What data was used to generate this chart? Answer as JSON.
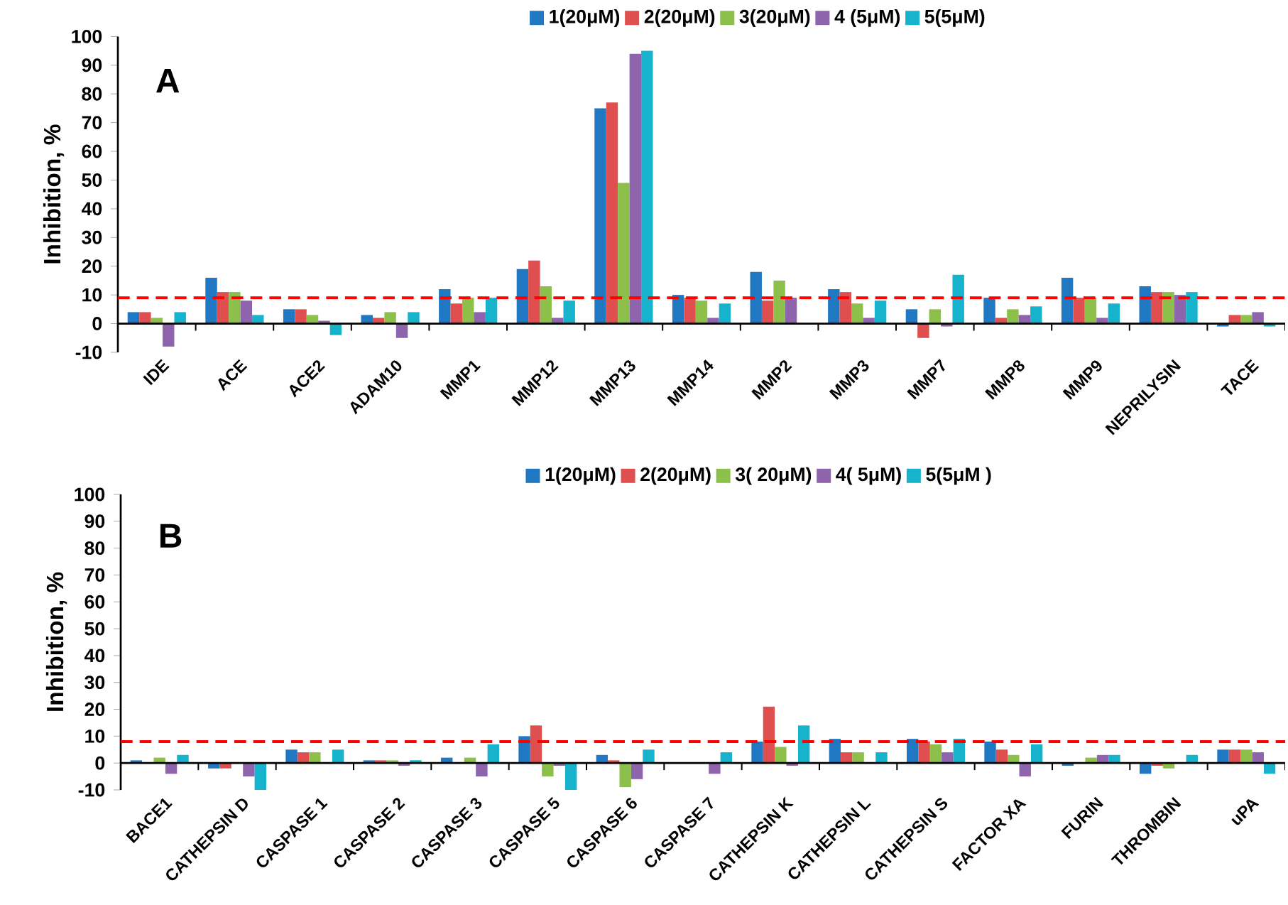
{
  "chart_data": [
    {
      "type": "bar",
      "ylabel": "Inhibition, %",
      "annotations": [
        "A"
      ],
      "categories": [
        "IDE",
        "ACE",
        "ACE2",
        "ADAM10",
        "MMP1",
        "MMP12",
        "MMP13",
        "MMP14",
        "MMP2",
        "MMP3",
        "MMP7",
        "MMP8",
        "MMP9",
        "NEPRILYSIN",
        "TACE"
      ],
      "series": [
        {
          "name": "1(20μM)",
          "color": "#1f78c1",
          "values": [
            4,
            16,
            5,
            3,
            12,
            19,
            75,
            10,
            18,
            12,
            5,
            9,
            16,
            13,
            -1
          ]
        },
        {
          "name": "2(20μM)",
          "color": "#e04f4f",
          "values": [
            4,
            11,
            5,
            2,
            7,
            22,
            77,
            9,
            8,
            11,
            -5,
            2,
            9,
            11,
            3
          ]
        },
        {
          "name": "3(20μM)",
          "color": "#8cc04a",
          "values": [
            2,
            11,
            3,
            4,
            9,
            13,
            49,
            8,
            15,
            7,
            5,
            5,
            9,
            11,
            3
          ]
        },
        {
          "name": "4 (5μM)",
          "color": "#8e65ad",
          "values": [
            -8,
            8,
            1,
            -5,
            4,
            2,
            94,
            2,
            9,
            2,
            -1,
            3,
            2,
            10,
            4
          ]
        },
        {
          "name": "5(5μM)",
          "color": "#17b3cc",
          "values": [
            4,
            3,
            -4,
            4,
            9,
            8,
            95,
            7,
            0,
            8,
            17,
            6,
            7,
            11,
            -1
          ]
        }
      ],
      "ylim": [
        -10,
        100
      ],
      "yticks": [
        -10,
        0,
        10,
        20,
        30,
        40,
        50,
        60,
        70,
        80,
        90,
        100
      ],
      "legend": "top",
      "ref_lines": [
        {
          "axis": "y",
          "value": 9,
          "color": "#ff0000",
          "line_style": "dashed"
        }
      ]
    },
    {
      "type": "bar",
      "ylabel": "Inhibition, %",
      "annotations": [
        "B"
      ],
      "categories": [
        "BACE1",
        "CATHEPSIN D",
        "CASPASE 1",
        "CASPASE 2",
        "CASPASE 3",
        "CASPASE 5",
        "CASPASE 6",
        "CASPASE 7",
        "CATHEPSIN K",
        "CATHEPSIN L",
        "CATHEPSIN S",
        "FACTOR XA",
        "FURIN",
        "THROMBIN",
        "uPA"
      ],
      "series": [
        {
          "name": "1(20μM)",
          "color": "#1f78c1",
          "values": [
            1,
            -2,
            5,
            1,
            2,
            10,
            3,
            0,
            8,
            9,
            9,
            8,
            -1,
            -4,
            5
          ]
        },
        {
          "name": "2(20μM)",
          "color": "#e04f4f",
          "values": [
            0,
            -2,
            4,
            1,
            0,
            14,
            1,
            0,
            21,
            4,
            8,
            5,
            0,
            -1,
            5
          ]
        },
        {
          "name": "3( 20μM)",
          "color": "#8cc04a",
          "values": [
            2,
            0,
            4,
            1,
            2,
            -5,
            -9,
            0,
            6,
            4,
            7,
            3,
            2,
            -2,
            5
          ]
        },
        {
          "name": "4( 5μM)",
          "color": "#8e65ad",
          "values": [
            -4,
            -5,
            0,
            -1,
            -5,
            -1,
            -6,
            -4,
            -1,
            0,
            4,
            -5,
            3,
            0,
            4
          ]
        },
        {
          "name": "5(5μM )",
          "color": "#17b3cc",
          "values": [
            3,
            -10,
            5,
            1,
            7,
            -10,
            5,
            4,
            14,
            4,
            9,
            7,
            3,
            3,
            -4
          ]
        }
      ],
      "ylim": [
        -10,
        100
      ],
      "yticks": [
        -10,
        0,
        10,
        20,
        30,
        40,
        50,
        60,
        70,
        80,
        90,
        100
      ],
      "legend": "top",
      "ref_lines": [
        {
          "axis": "y",
          "value": 8,
          "color": "#ff0000",
          "line_style": "dashed"
        }
      ]
    }
  ]
}
